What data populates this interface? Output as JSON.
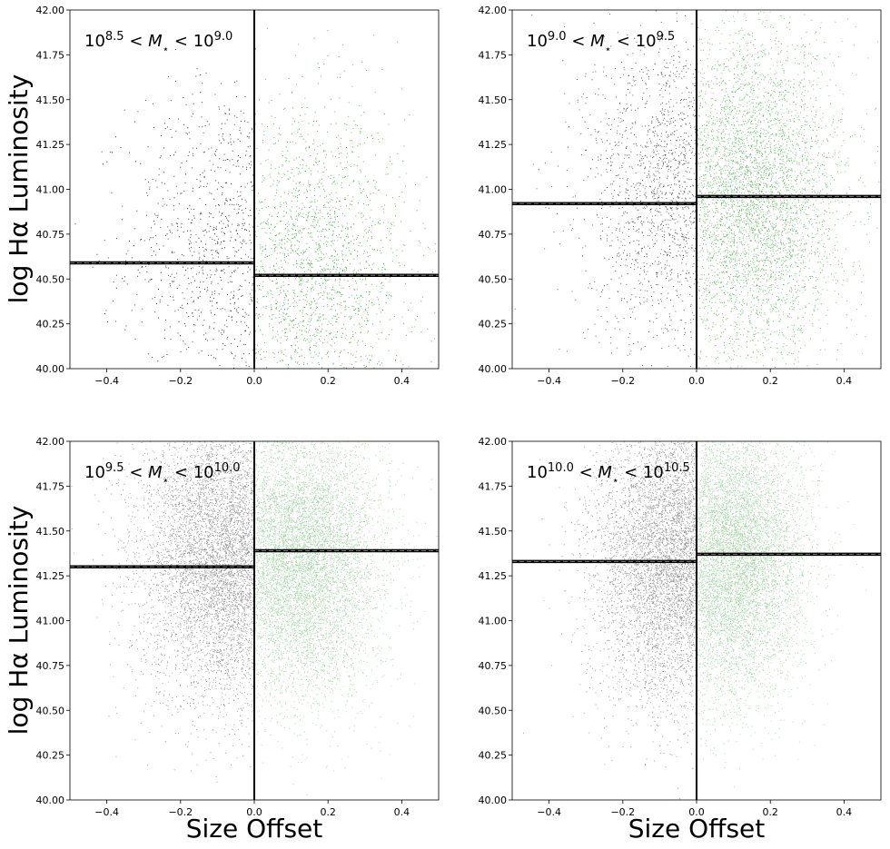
{
  "figure": {
    "ylabel": "log Hα Luminosity",
    "xlabel": "Size Offset",
    "colors": {
      "below": "#000000",
      "above": "#2ca02c"
    }
  },
  "chart_data": [
    {
      "type": "scatter",
      "annotation": {
        "base": "10",
        "exp1": "8.5",
        "mid": " < M",
        "sub": "⋆",
        "lt": " < 10",
        "exp2": "9.0"
      },
      "xlim": [
        -0.5,
        0.5
      ],
      "ylim": [
        40.0,
        42.0
      ],
      "xticks": [
        "−0.4",
        "−0.2",
        "0.0",
        "0.2",
        "0.4"
      ],
      "yticks": [
        "40.00",
        "40.25",
        "40.50",
        "40.75",
        "41.00",
        "41.25",
        "41.50",
        "41.75",
        "42.00"
      ],
      "vline_x": 0.0,
      "median_left": 40.59,
      "median_right": 40.52,
      "density": "sparse",
      "cloud_left": {
        "center": [
          -0.08,
          40.7
        ],
        "spread": [
          0.13,
          0.45
        ]
      },
      "cloud_right": {
        "center": [
          0.15,
          40.55
        ],
        "spread": [
          0.13,
          0.45
        ]
      }
    },
    {
      "type": "scatter",
      "annotation": {
        "base": "10",
        "exp1": "9.0",
        "mid": " < M",
        "sub": "⋆",
        "lt": " < 10",
        "exp2": "9.5"
      },
      "xlim": [
        -0.5,
        0.5
      ],
      "ylim": [
        40.0,
        42.0
      ],
      "xticks": [
        "−0.4",
        "−0.2",
        "0.0",
        "0.2",
        "0.4"
      ],
      "yticks": [
        "40.00",
        "40.25",
        "40.50",
        "40.75",
        "41.00",
        "41.25",
        "41.50",
        "41.75",
        "42.00"
      ],
      "vline_x": 0.0,
      "median_left": 40.92,
      "median_right": 40.96,
      "density": "medium",
      "cloud_left": {
        "center": [
          -0.06,
          41.0
        ],
        "spread": [
          0.12,
          0.45
        ]
      },
      "cloud_right": {
        "center": [
          0.15,
          40.95
        ],
        "spread": [
          0.12,
          0.45
        ]
      }
    },
    {
      "type": "scatter",
      "annotation": {
        "base": "10",
        "exp1": "9.5",
        "mid": " < M",
        "sub": "⋆",
        "lt": " < 10",
        "exp2": "10.0"
      },
      "xlim": [
        -0.5,
        0.5
      ],
      "ylim": [
        40.0,
        42.0
      ],
      "xticks": [
        "−0.4",
        "−0.2",
        "0.0",
        "0.2",
        "0.4"
      ],
      "yticks": [
        "40.00",
        "40.25",
        "40.50",
        "40.75",
        "41.00",
        "41.25",
        "41.50",
        "41.75",
        "42.00"
      ],
      "vline_x": 0.0,
      "median_left": 41.3,
      "median_right": 41.39,
      "density": "dense",
      "cloud_left": {
        "center": [
          -0.07,
          41.35
        ],
        "spread": [
          0.12,
          0.4
        ]
      },
      "cloud_right": {
        "center": [
          0.12,
          41.35
        ],
        "spread": [
          0.11,
          0.38
        ]
      }
    },
    {
      "type": "scatter",
      "annotation": {
        "base": "10",
        "exp1": "10.0",
        "mid": " < M",
        "sub": "⋆",
        "lt": " < 10",
        "exp2": "10.5"
      },
      "xlim": [
        -0.5,
        0.5
      ],
      "ylim": [
        40.0,
        42.0
      ],
      "xticks": [
        "−0.4",
        "−0.2",
        "0.0",
        "0.2",
        "0.4"
      ],
      "yticks": [
        "40.00",
        "40.25",
        "40.50",
        "40.75",
        "41.00",
        "41.25",
        "41.50",
        "41.75",
        "42.00"
      ],
      "vline_x": 0.0,
      "median_left": 41.33,
      "median_right": 41.37,
      "density": "dense",
      "cloud_left": {
        "center": [
          -0.05,
          41.35
        ],
        "spread": [
          0.11,
          0.4
        ]
      },
      "cloud_right": {
        "center": [
          0.09,
          41.35
        ],
        "spread": [
          0.1,
          0.38
        ]
      }
    }
  ]
}
